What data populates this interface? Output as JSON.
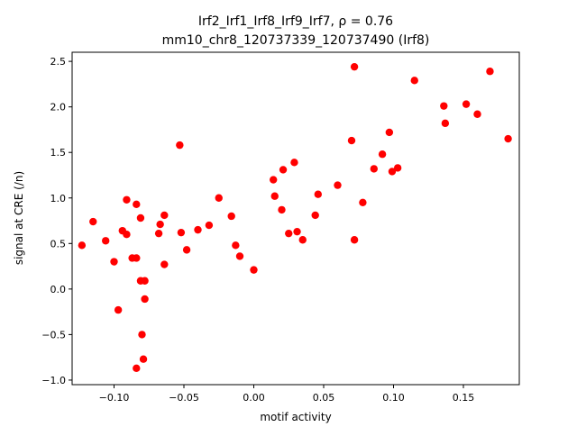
{
  "chart_data": {
    "type": "scatter",
    "title_line1": "Irf2_Irf1_Irf8_Irf9_Irf7, ρ = 0.76",
    "title_line2": "mm10_chr8_120737339_120737490 (Irf8)",
    "xlabel": "motif activity",
    "ylabel": "signal at CRE (/n)",
    "xlim": [
      -0.13,
      0.19
    ],
    "ylim": [
      -1.05,
      2.6
    ],
    "xticks": [
      -0.1,
      -0.05,
      0.0,
      0.05,
      0.1,
      0.15
    ],
    "xtick_labels": [
      "−0.10",
      "−0.05",
      "0.00",
      "0.05",
      "0.10",
      "0.15"
    ],
    "yticks": [
      -1.0,
      -0.5,
      0.0,
      0.5,
      1.0,
      1.5,
      2.0,
      2.5
    ],
    "ytick_labels": [
      "−1.0",
      "−0.5",
      "0.0",
      "0.5",
      "1.0",
      "1.5",
      "2.0",
      "2.5"
    ],
    "grid": false,
    "marker_color": "#ff0000",
    "points": [
      [
        -0.123,
        0.48
      ],
      [
        -0.115,
        0.74
      ],
      [
        -0.106,
        0.53
      ],
      [
        -0.1,
        0.3
      ],
      [
        -0.097,
        -0.23
      ],
      [
        -0.094,
        0.64
      ],
      [
        -0.091,
        0.6
      ],
      [
        -0.091,
        0.98
      ],
      [
        -0.087,
        0.34
      ],
      [
        -0.084,
        0.34
      ],
      [
        -0.084,
        0.93
      ],
      [
        -0.084,
        -0.87
      ],
      [
        -0.081,
        0.78
      ],
      [
        -0.081,
        0.09
      ],
      [
        -0.08,
        -0.5
      ],
      [
        -0.079,
        -0.77
      ],
      [
        -0.078,
        -0.11
      ],
      [
        -0.078,
        0.09
      ],
      [
        -0.068,
        0.61
      ],
      [
        -0.067,
        0.71
      ],
      [
        -0.064,
        0.81
      ],
      [
        -0.064,
        0.27
      ],
      [
        -0.053,
        1.58
      ],
      [
        -0.052,
        0.62
      ],
      [
        -0.048,
        0.43
      ],
      [
        -0.04,
        0.65
      ],
      [
        -0.032,
        0.7
      ],
      [
        -0.025,
        1.0
      ],
      [
        -0.016,
        0.8
      ],
      [
        -0.013,
        0.48
      ],
      [
        -0.01,
        0.36
      ],
      [
        0.0,
        0.21
      ],
      [
        0.014,
        1.2
      ],
      [
        0.015,
        1.02
      ],
      [
        0.02,
        0.87
      ],
      [
        0.021,
        1.31
      ],
      [
        0.025,
        0.61
      ],
      [
        0.029,
        1.39
      ],
      [
        0.031,
        0.63
      ],
      [
        0.035,
        0.54
      ],
      [
        0.044,
        0.81
      ],
      [
        0.046,
        1.04
      ],
      [
        0.06,
        1.14
      ],
      [
        0.07,
        1.63
      ],
      [
        0.072,
        2.44
      ],
      [
        0.072,
        0.54
      ],
      [
        0.078,
        0.95
      ],
      [
        0.086,
        1.32
      ],
      [
        0.092,
        1.48
      ],
      [
        0.097,
        1.72
      ],
      [
        0.099,
        1.29
      ],
      [
        0.103,
        1.33
      ],
      [
        0.115,
        2.29
      ],
      [
        0.136,
        2.01
      ],
      [
        0.137,
        1.82
      ],
      [
        0.152,
        2.03
      ],
      [
        0.16,
        1.92
      ],
      [
        0.169,
        2.39
      ],
      [
        0.182,
        1.65
      ]
    ]
  }
}
